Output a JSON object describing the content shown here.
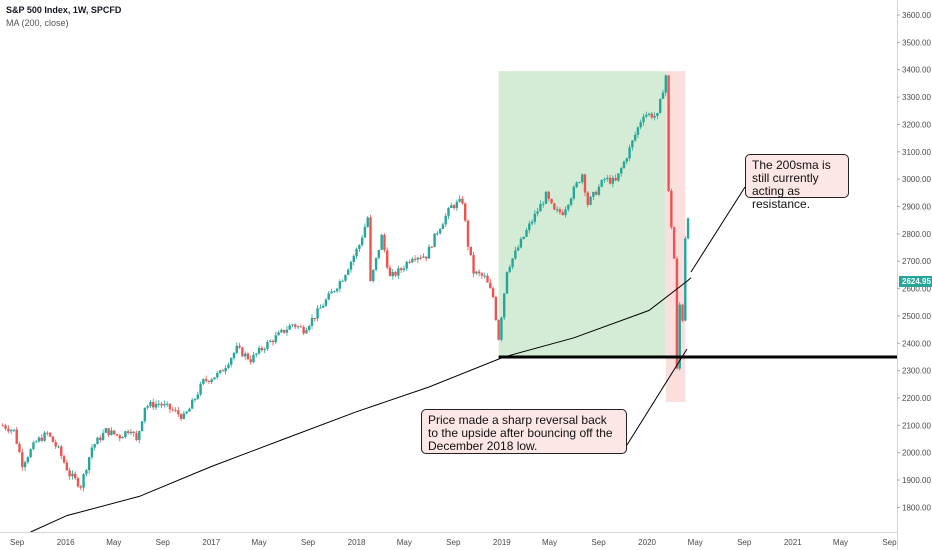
{
  "legend": {
    "title": "S&P 500 Index, 1W, SPCFD",
    "indicator": "MA (200, close)"
  },
  "price_tag": "2624.95",
  "callouts": {
    "resistance": "The 200sma is still currently acting as resistance.",
    "reversal": "Price made a sharp reversal back to the upside after bouncing off the December 2018 low."
  },
  "colors": {
    "up": "#26a69a",
    "down": "#ef5350",
    "ma": "#000000",
    "green_zone": "#d4ecd5",
    "red_zone": "#fbdede",
    "support_line": "#000000"
  },
  "chart_data": {
    "type": "candlestick",
    "timeframe": "1W",
    "symbol": "S&P 500 Index",
    "x_tick_labels": [
      "Sep",
      "2016",
      "May",
      "Sep",
      "2017",
      "May",
      "Sep",
      "2018",
      "May",
      "Sep",
      "2019",
      "May",
      "Sep",
      "2020",
      "May",
      "Sep",
      "2021",
      "May",
      "Sep"
    ],
    "y_tick_labels": [
      "1800.00",
      "1900.00",
      "2000.00",
      "2100.00",
      "2200.00",
      "2300.00",
      "2400.00",
      "2500.00",
      "2600.00",
      "2700.00",
      "2800.00",
      "2900.00",
      "3000.00",
      "3100.00",
      "3200.00",
      "3300.00",
      "3400.00",
      "3500.00",
      "3600.00"
    ],
    "ylim": [
      1710,
      3655
    ],
    "x_range": [
      "2015-07-20",
      "2021-09-20"
    ],
    "price_series": {
      "name": "S&P 500 Index",
      "dates": [
        "2015-07-27",
        "2015-08-24",
        "2015-09-14",
        "2015-10-19",
        "2015-11-16",
        "2015-12-14",
        "2016-01-11",
        "2016-02-08",
        "2016-03-07",
        "2016-04-11",
        "2016-05-16",
        "2016-06-13",
        "2016-06-27",
        "2016-07-18",
        "2016-08-22",
        "2016-09-19",
        "2016-10-24",
        "2016-11-07",
        "2016-12-12",
        "2017-01-23",
        "2017-03-06",
        "2017-04-10",
        "2017-05-15",
        "2017-06-19",
        "2017-07-24",
        "2017-08-21",
        "2017-09-18",
        "2017-10-23",
        "2017-11-27",
        "2018-01-08",
        "2018-01-29",
        "2018-02-05",
        "2018-03-05",
        "2018-03-26",
        "2018-04-23",
        "2018-05-21",
        "2018-06-25",
        "2018-07-23",
        "2018-08-27",
        "2018-09-24",
        "2018-10-08",
        "2018-10-22",
        "2018-11-19",
        "2018-12-10",
        "2018-12-24",
        "2019-01-14",
        "2019-02-11",
        "2019-03-11",
        "2019-04-22",
        "2019-05-13",
        "2019-06-03",
        "2019-07-22",
        "2019-08-05",
        "2019-09-16",
        "2019-10-14",
        "2019-11-18",
        "2019-12-23",
        "2020-01-27",
        "2020-02-17",
        "2020-02-24",
        "2020-03-09",
        "2020-03-16",
        "2020-03-23",
        "2020-03-30",
        "2020-04-06",
        "2020-04-13"
      ],
      "close": [
        2100,
        2080,
        1960,
        2040,
        2070,
        2010,
        1920,
        1880,
        2020,
        2080,
        2060,
        2090,
        2040,
        2170,
        2180,
        2160,
        2130,
        2160,
        2260,
        2290,
        2380,
        2340,
        2390,
        2430,
        2470,
        2450,
        2500,
        2570,
        2640,
        2760,
        2860,
        2620,
        2790,
        2640,
        2670,
        2720,
        2720,
        2810,
        2900,
        2920,
        2760,
        2660,
        2640,
        2570,
        2420,
        2670,
        2750,
        2830,
        2940,
        2880,
        2880,
        3020,
        2910,
        3000,
        2990,
        3110,
        3240,
        3230,
        3380,
        2950,
        2710,
        2300,
        2540,
        2490,
        2790,
        2870
      ]
    },
    "ma_series": {
      "name": "MA (200, close)",
      "dates": [
        "2015-10-05",
        "2016-01-04",
        "2016-07-04",
        "2017-01-02",
        "2017-07-03",
        "2018-01-01",
        "2018-07-02",
        "2019-01-07",
        "2019-07-01",
        "2020-01-06",
        "2020-04-13",
        "2020-04-20"
      ],
      "values": [
        1710,
        1770,
        1840,
        1950,
        2050,
        2150,
        2240,
        2350,
        2420,
        2520,
        2630,
        2640
      ]
    },
    "support_level": 2350,
    "support_start": "2018-12-24",
    "resistance_value": 2624.95,
    "zones": [
      {
        "color": "green",
        "start": "2018-12-24",
        "end": "2020-02-17",
        "low": 2350,
        "high": 3395
      },
      {
        "color": "red",
        "start": "2020-02-17",
        "end": "2020-04-06",
        "low": 2185,
        "high": 3395
      }
    ]
  }
}
